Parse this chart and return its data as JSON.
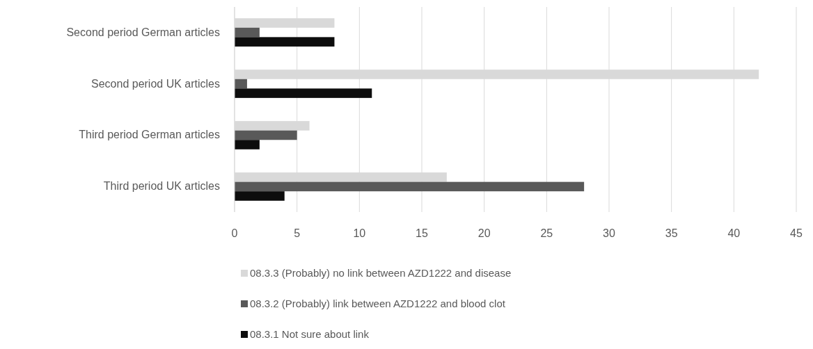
{
  "chart_data": {
    "type": "bar",
    "orientation": "horizontal",
    "categories": [
      "Second period German articles",
      "Second period UK articles",
      "Third period German articles",
      "Third period UK articles"
    ],
    "series": [
      {
        "name": "08.3.3 (Probably) no link between AZD1222 and disease",
        "color": "#d9d9d9",
        "values": [
          8,
          42,
          6,
          17
        ]
      },
      {
        "name": "08.3.2 (Probably) link between AZD1222 and blood clot",
        "color": "#595959",
        "values": [
          2,
          1,
          5,
          28
        ]
      },
      {
        "name": "08.3.1 Not sure about link",
        "color": "#0d0d0d",
        "values": [
          8,
          11,
          2,
          4
        ]
      }
    ],
    "xlim": [
      0,
      45
    ],
    "xticks": [
      0,
      5,
      10,
      15,
      20,
      25,
      30,
      35,
      40,
      45
    ],
    "grid": "x",
    "legend": "bottom"
  }
}
